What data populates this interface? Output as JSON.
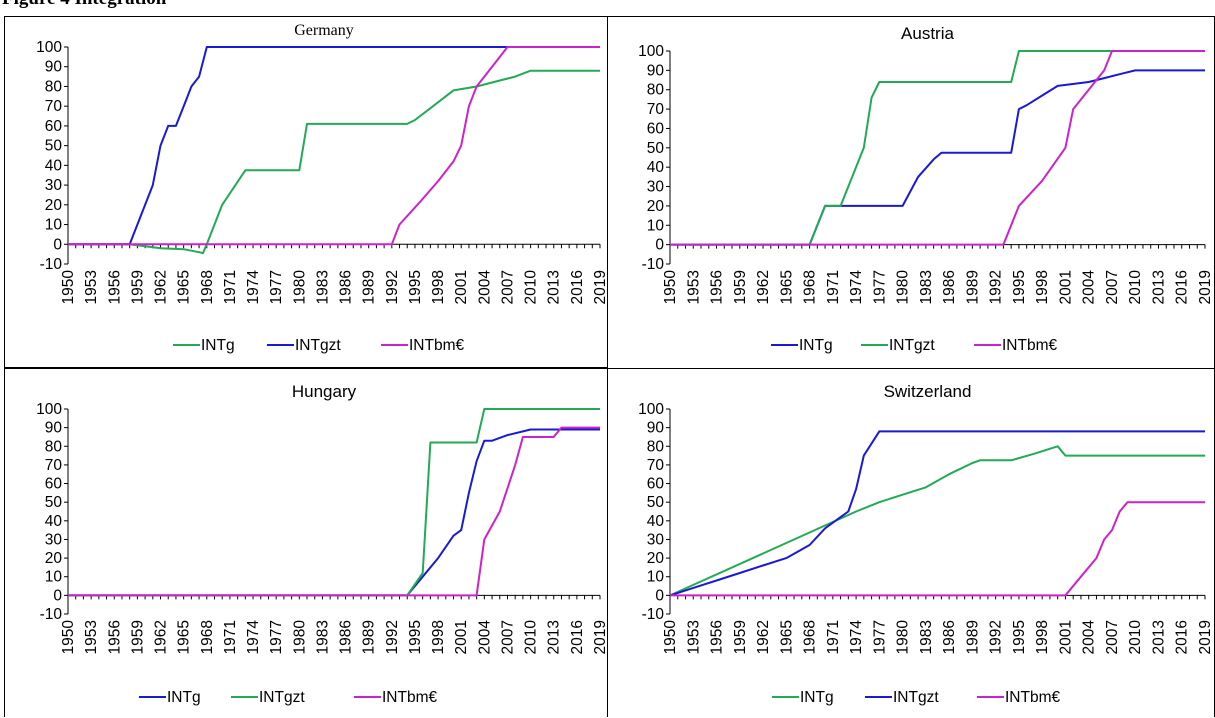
{
  "figure_header": "Figure 4 Integration",
  "chart_data": [
    {
      "type": "line",
      "title": "Germany",
      "x_categories": [
        "1950",
        "1953",
        "1956",
        "1959",
        "1962",
        "1965",
        "1968",
        "1971",
        "1974",
        "1977",
        "1980",
        "1983",
        "1986",
        "1989",
        "1992",
        "1995",
        "1998",
        "2001",
        "2004",
        "2007",
        "2010",
        "2013",
        "2016",
        "2019"
      ],
      "ylim": [
        -10,
        100
      ],
      "yticks": [
        -10,
        0,
        10,
        20,
        30,
        40,
        50,
        60,
        70,
        80,
        90,
        100
      ],
      "xlim": [
        1950,
        2019
      ],
      "legend_position": "bottom",
      "series": [
        {
          "name": "INTg",
          "color": "#22aa55",
          "points": [
            [
              1950,
              0
            ],
            [
              1958,
              0
            ],
            [
              1960,
              -1
            ],
            [
              1962,
              -2
            ],
            [
              1965,
              -2.5
            ],
            [
              1967,
              -4
            ],
            [
              1967.5,
              -4.5
            ],
            [
              1968,
              0
            ],
            [
              1970,
              20
            ],
            [
              1973,
              37.5
            ],
            [
              1980,
              37.5
            ],
            [
              1981,
              61
            ],
            [
              1994,
              61
            ],
            [
              1995,
              63
            ],
            [
              1997,
              69
            ],
            [
              1999,
              75
            ],
            [
              2000,
              78
            ],
            [
              2003,
              80
            ],
            [
              2006,
              83
            ],
            [
              2008,
              85
            ],
            [
              2010,
              88
            ],
            [
              2019,
              88
            ]
          ]
        },
        {
          "name": "INTgzt",
          "color": "#1a1ad6",
          "points": [
            [
              1950,
              0
            ],
            [
              1958,
              0
            ],
            [
              1961,
              30
            ],
            [
              1962,
              50
            ],
            [
              1963,
              60
            ],
            [
              1964,
              60
            ],
            [
              1965,
              70
            ],
            [
              1966,
              80
            ],
            [
              1967,
              85
            ],
            [
              1968,
              100
            ],
            [
              2019,
              100
            ]
          ]
        },
        {
          "name": "INTbm€",
          "color": "#cc22cc",
          "points": [
            [
              1950,
              0
            ],
            [
              1992,
              0
            ],
            [
              1993,
              10
            ],
            [
              1996,
              23
            ],
            [
              1998,
              32
            ],
            [
              2000,
              42
            ],
            [
              2001,
              50
            ],
            [
              2002,
              70
            ],
            [
              2003,
              80
            ],
            [
              2005,
              90
            ],
            [
              2007,
              100
            ],
            [
              2019,
              100
            ]
          ]
        }
      ]
    },
    {
      "type": "line",
      "title": "Austria",
      "x_categories": [
        "1950",
        "1953",
        "1956",
        "1959",
        "1962",
        "1965",
        "1968",
        "1971",
        "1974",
        "1977",
        "1980",
        "1983",
        "1986",
        "1989",
        "1992",
        "1995",
        "1998",
        "2001",
        "2004",
        "2007",
        "2010",
        "2013",
        "2016",
        "2019"
      ],
      "ylim": [
        -10,
        100
      ],
      "yticks": [
        -10,
        0,
        10,
        20,
        30,
        40,
        50,
        60,
        70,
        80,
        90,
        100
      ],
      "xlim": [
        1950,
        2019
      ],
      "legend_position": "bottom",
      "series": [
        {
          "name": "INTg",
          "color": "#1a1ad6",
          "points": [
            [
              1950,
              0
            ],
            [
              1968,
              0
            ],
            [
              1970,
              20
            ],
            [
              1980,
              20
            ],
            [
              1982,
              35
            ],
            [
              1984,
              44
            ],
            [
              1985,
              47.5
            ],
            [
              1994,
              47.5
            ],
            [
              1995,
              70
            ],
            [
              1996,
              72
            ],
            [
              1998,
              77
            ],
            [
              2000,
              82
            ],
            [
              2004,
              84
            ],
            [
              2006,
              86
            ],
            [
              2008,
              88
            ],
            [
              2010,
              90
            ],
            [
              2019,
              90
            ]
          ]
        },
        {
          "name": "INTgzt",
          "color": "#22aa55",
          "points": [
            [
              1950,
              0
            ],
            [
              1968,
              0
            ],
            [
              1970,
              20
            ],
            [
              1972,
              20
            ],
            [
              1975,
              50
            ],
            [
              1976,
              76
            ],
            [
              1977,
              84
            ],
            [
              1994,
              84
            ],
            [
              1995,
              100
            ],
            [
              2019,
              100
            ]
          ]
        },
        {
          "name": "INTbm€",
          "color": "#cc22cc",
          "points": [
            [
              1950,
              0
            ],
            [
              1993,
              0
            ],
            [
              1995,
              20
            ],
            [
              1998,
              33
            ],
            [
              2001,
              50
            ],
            [
              2002,
              70
            ],
            [
              2004,
              80
            ],
            [
              2006,
              90
            ],
            [
              2007,
              100
            ],
            [
              2019,
              100
            ]
          ]
        }
      ]
    },
    {
      "type": "line",
      "title": "Hungary",
      "x_categories": [
        "1950",
        "1953",
        "1956",
        "1959",
        "1962",
        "1965",
        "1968",
        "1971",
        "1974",
        "1977",
        "1980",
        "1983",
        "1986",
        "1989",
        "1992",
        "1995",
        "1998",
        "2001",
        "2004",
        "2007",
        "2010",
        "2013",
        "2016",
        "2019"
      ],
      "ylim": [
        -10,
        100
      ],
      "yticks": [
        -10,
        0,
        10,
        20,
        30,
        40,
        50,
        60,
        70,
        80,
        90,
        100
      ],
      "xlim": [
        1950,
        2019
      ],
      "legend_position": "bottom",
      "series": [
        {
          "name": "INTg",
          "color": "#1a1ad6",
          "points": [
            [
              1950,
              0
            ],
            [
              1994,
              0
            ],
            [
              1996,
              10
            ],
            [
              1998,
              20
            ],
            [
              2000,
              32
            ],
            [
              2001,
              35
            ],
            [
              2002,
              55
            ],
            [
              2003,
              72
            ],
            [
              2004,
              83
            ],
            [
              2005,
              83
            ],
            [
              2007,
              86
            ],
            [
              2010,
              89
            ],
            [
              2019,
              89
            ]
          ]
        },
        {
          "name": "INTgzt",
          "color": "#22aa55",
          "points": [
            [
              1950,
              0
            ],
            [
              1994,
              0
            ],
            [
              1996,
              12
            ],
            [
              1997,
              82
            ],
            [
              2003,
              82
            ],
            [
              2004,
              100
            ],
            [
              2019,
              100
            ]
          ]
        },
        {
          "name": "INTbm€",
          "color": "#cc22cc",
          "points": [
            [
              1950,
              0
            ],
            [
              2003,
              0
            ],
            [
              2004,
              30
            ],
            [
              2006,
              45
            ],
            [
              2008,
              70
            ],
            [
              2009,
              85
            ],
            [
              2013,
              85
            ],
            [
              2014,
              90
            ],
            [
              2019,
              90
            ]
          ]
        }
      ]
    },
    {
      "type": "line",
      "title": "Switzerland",
      "x_categories": [
        "1950",
        "1953",
        "1956",
        "1959",
        "1962",
        "1965",
        "1968",
        "1971",
        "1974",
        "1977",
        "1980",
        "1983",
        "1986",
        "1989",
        "1992",
        "1995",
        "1998",
        "2001",
        "2004",
        "2007",
        "2010",
        "2013",
        "2016",
        "2019"
      ],
      "ylim": [
        -10,
        100
      ],
      "yticks": [
        -10,
        0,
        10,
        20,
        30,
        40,
        50,
        60,
        70,
        80,
        90,
        100
      ],
      "xlim": [
        1950,
        2019
      ],
      "legend_position": "bottom",
      "series": [
        {
          "name": "INTg",
          "color": "#22aa55",
          "points": [
            [
              1950,
              0
            ],
            [
              1974,
              45
            ],
            [
              1977,
              50
            ],
            [
              1980,
              54
            ],
            [
              1983,
              58
            ],
            [
              1986,
              65
            ],
            [
              1989,
              71
            ],
            [
              1990,
              72.5
            ],
            [
              1994,
              72.5
            ],
            [
              1997,
              76
            ],
            [
              2000,
              80
            ],
            [
              2001,
              75
            ],
            [
              2019,
              75
            ]
          ]
        },
        {
          "name": "INTgzt",
          "color": "#1a1ad6",
          "points": [
            [
              1950,
              0
            ],
            [
              1953,
              4
            ],
            [
              1956,
              8
            ],
            [
              1959,
              12
            ],
            [
              1962,
              16
            ],
            [
              1965,
              20
            ],
            [
              1968,
              27
            ],
            [
              1970,
              36
            ],
            [
              1972,
              42
            ],
            [
              1973,
              45
            ],
            [
              1974,
              57
            ],
            [
              1975,
              75
            ],
            [
              1977,
              88
            ],
            [
              2019,
              88
            ]
          ]
        },
        {
          "name": "INTbm€",
          "color": "#cc22cc",
          "points": [
            [
              1950,
              0
            ],
            [
              2001,
              0
            ],
            [
              2003,
              10
            ],
            [
              2005,
              20
            ],
            [
              2006,
              30
            ],
            [
              2007,
              35
            ],
            [
              2008,
              45
            ],
            [
              2009,
              50
            ],
            [
              2019,
              50
            ]
          ]
        }
      ]
    }
  ]
}
